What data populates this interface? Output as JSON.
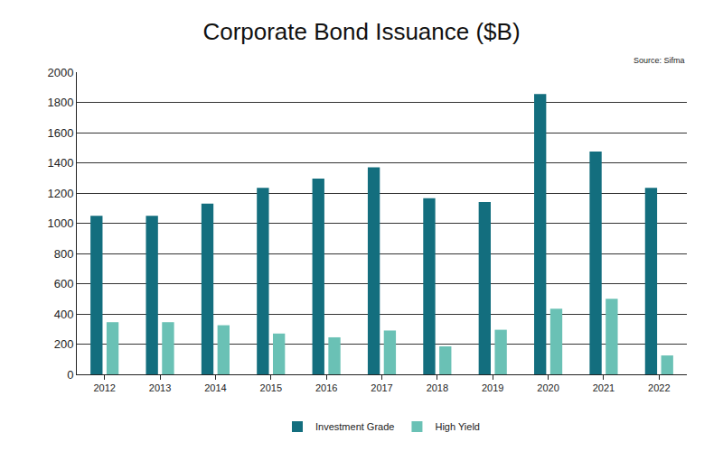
{
  "chart_data": {
    "type": "bar",
    "title": "Corporate Bond Issuance ($B)",
    "annotations": [
      "Source: Sifma"
    ],
    "categories": [
      "2012",
      "2013",
      "2014",
      "2015",
      "2016",
      "2017",
      "2018",
      "2019",
      "2020",
      "2021",
      "2022"
    ],
    "series": [
      {
        "name": "Investment Grade",
        "color": "#136e7e",
        "values": [
          1050,
          1050,
          1130,
          1235,
          1295,
          1370,
          1165,
          1140,
          1855,
          1475,
          1235
        ]
      },
      {
        "name": "High Yield",
        "color": "#6ac1b5",
        "values": [
          345,
          345,
          325,
          270,
          245,
          290,
          185,
          295,
          435,
          500,
          125
        ]
      }
    ],
    "ylim": [
      0,
      2000
    ],
    "yticks": [
      0,
      200,
      400,
      600,
      800,
      1000,
      1200,
      1400,
      1600,
      1800,
      2000
    ],
    "grid": true,
    "legend": "bottom"
  }
}
